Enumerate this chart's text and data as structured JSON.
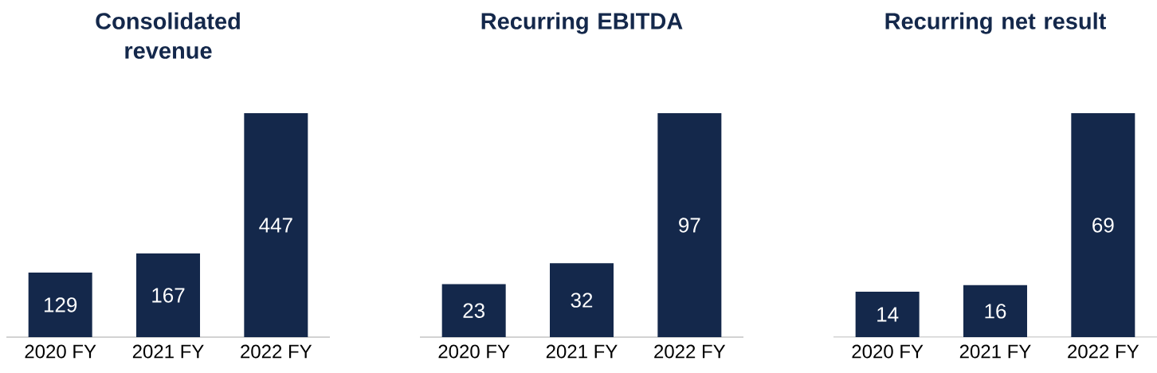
{
  "chart_data": [
    {
      "type": "bar",
      "title": "Consolidated revenue",
      "categories": [
        "2020 FY",
        "2021 FY",
        "2022 FY"
      ],
      "values": [
        129,
        167,
        447
      ],
      "color": "#14284b",
      "data_labels": true
    },
    {
      "type": "bar",
      "title": "Recurring EBITDA",
      "categories": [
        "2020 FY",
        "2021 FY",
        "2022 FY"
      ],
      "values": [
        23,
        32,
        97
      ],
      "color": "#14284b",
      "data_labels": true
    },
    {
      "type": "bar",
      "title": "Recurring net result",
      "categories": [
        "2020 FY",
        "2021 FY",
        "2022 FY"
      ],
      "values": [
        14,
        16,
        69
      ],
      "color": "#14284b",
      "data_labels": true
    }
  ]
}
